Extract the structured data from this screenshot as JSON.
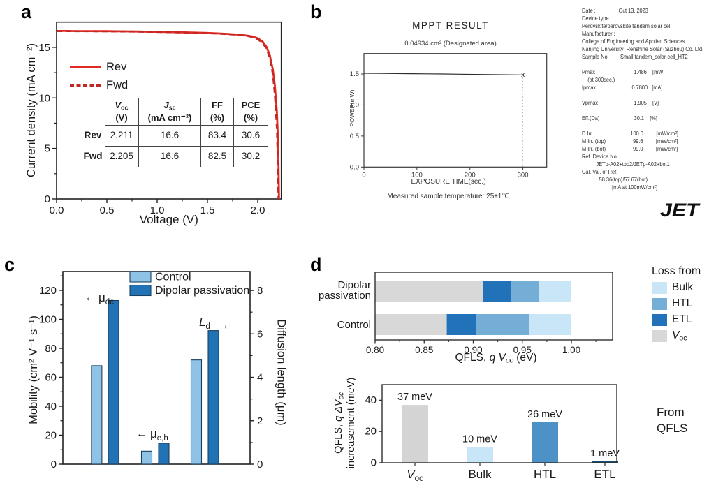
{
  "panel_a": {
    "label": "a",
    "table": {
      "row_header": [
        "Rev",
        "Fwd"
      ],
      "columns": [
        {
          "main": "V",
          "sub": "oc",
          "unit": "(V)"
        },
        {
          "main": "J",
          "sub": "sc",
          "unit": "(mA cm⁻²)"
        },
        {
          "main": "FF",
          "sub": "",
          "unit": "(%)"
        },
        {
          "main": "PCE",
          "sub": "",
          "unit": "(%)"
        }
      ],
      "rows": [
        [
          "2.211",
          "16.6",
          "83.4",
          "30.6"
        ],
        [
          "2.205",
          "16.6",
          "82.5",
          "30.2"
        ]
      ]
    }
  },
  "panel_b": {
    "label": "b",
    "logo": "JET",
    "info_lines": [
      "Date :                Oct 13, 2023",
      "Device type :",
      "Perovskite/perovskite tandem solar cell",
      "Manufacturer :",
      "College of Engineering and Applied Sciences",
      "Nanjing University; Renshine Solar (Suzhou) Co. Ltd.",
      "Sample No. :      Small tandem_solar cell_HT2",
      "",
      "Pmax                           1.486    [mW]",
      "    (at 300sec.)",
      "Ipmax                         0.7800   [mA]",
      "",
      "Vpmax                         1.905    [V]",
      "",
      "Eff.(Da)                        30.1    [%]",
      "",
      "D Irr.                          100.0         [mW/cm²]",
      "M Irr. (top)                   99.6         [mW/cm²]",
      "M Irr. (bot)                   99.0         [mW/cm²]",
      "Ref. Device No.",
      "          JETp-A02+top2/JETp-A02+bot1",
      "Cal. Val. of Ref.",
      "            58.36(top)/57.67(bot)",
      "                     [mA at 100mW/cm²]"
    ]
  },
  "panel_c": {
    "label": "c"
  },
  "panel_d": {
    "label": "d",
    "from_line1": "From",
    "from_line2": "QFLS"
  },
  "chart_data": [
    {
      "id": "jv",
      "type": "line",
      "xlabel": "Voltage (V)",
      "ylabel": "Current density (mA cm⁻²)",
      "xlim": [
        0,
        2.234
      ],
      "ylim": [
        0,
        17.5
      ],
      "xticks": [
        0,
        0.5,
        1.0,
        1.5,
        2.0
      ],
      "xtick_labels": [
        "0.0",
        "0.5",
        "1.0",
        "1.5",
        "2.0"
      ],
      "yticks": [
        0,
        5,
        10,
        15
      ],
      "ytick_labels": [
        "0",
        "5",
        "10",
        "15"
      ],
      "series": [
        {
          "name": "Rev",
          "style": "solid",
          "color": "#e02a22",
          "x": [
            0,
            0.1,
            0.2,
            0.3,
            0.4,
            0.5,
            0.6,
            0.7,
            0.8,
            0.9,
            1.0,
            1.1,
            1.2,
            1.3,
            1.4,
            1.5,
            1.6,
            1.7,
            1.8,
            1.9,
            1.95,
            2.0,
            2.05,
            2.09,
            2.12,
            2.15,
            2.17,
            2.19,
            2.2,
            2.206,
            2.211
          ],
          "y": [
            16.62,
            16.62,
            16.61,
            16.61,
            16.6,
            16.6,
            16.59,
            16.58,
            16.57,
            16.55,
            16.54,
            16.52,
            16.5,
            16.48,
            16.45,
            16.42,
            16.38,
            16.33,
            16.27,
            16.16,
            16.07,
            15.9,
            15.55,
            15.0,
            14.2,
            12.8,
            11.2,
            8.6,
            6.2,
            3.4,
            0
          ]
        },
        {
          "name": "Fwd",
          "style": "dashed",
          "color": "#c22823",
          "x": [
            0,
            0.2,
            0.4,
            0.6,
            0.8,
            1.0,
            1.2,
            1.4,
            1.6,
            1.8,
            1.9,
            1.95,
            2.0,
            2.05,
            2.09,
            2.12,
            2.15,
            2.17,
            2.19,
            2.198,
            2.205
          ],
          "y": [
            16.6,
            16.59,
            16.58,
            16.57,
            16.55,
            16.52,
            16.48,
            16.43,
            16.36,
            16.24,
            16.12,
            16.0,
            15.8,
            15.4,
            14.8,
            13.9,
            12.3,
            10.2,
            6.8,
            3.6,
            0
          ]
        }
      ]
    },
    {
      "id": "mppt",
      "type": "line",
      "title": "MPPT RESULT",
      "subtitle": "0.04934 cm² (Designated area)",
      "xlabel": "EXPOSURE TIME(sec.)",
      "ylabel": "POWER(mW)",
      "note": "Measured sample temperature: 25±1℃",
      "xlim": [
        0,
        345
      ],
      "ylim": [
        0,
        1.83
      ],
      "xticks": [
        0,
        100,
        200,
        300
      ],
      "xtick_labels": [
        "0",
        "100",
        "200",
        "300"
      ],
      "yticks": [
        0,
        0.5,
        1.0,
        1.5
      ],
      "ytick_labels": [
        "0.0",
        "0.5",
        "1.0",
        "1.5"
      ],
      "end_marker": "X",
      "series": [
        {
          "name": "power",
          "color": "#2e2e2e",
          "x": [
            0,
            30,
            60,
            90,
            120,
            150,
            180,
            210,
            240,
            270,
            300
          ],
          "y": [
            1.512,
            1.509,
            1.507,
            1.505,
            1.503,
            1.5,
            1.497,
            1.494,
            1.491,
            1.488,
            1.486
          ]
        }
      ]
    },
    {
      "id": "mobility",
      "type": "grouped-bar-dual-axis",
      "ylabel_left": "Mobility (cm² V⁻¹ s⁻¹)",
      "ylabel_right": "Diffusion length (μm)",
      "ylim_left": [
        0,
        133
      ],
      "ylim_right": [
        0,
        8.87
      ],
      "yticks_left": [
        0,
        20,
        40,
        60,
        80,
        100,
        120
      ],
      "yticks_right": [
        0,
        2,
        4,
        6,
        8
      ],
      "series_names": [
        "Control",
        "Dipolar passivation"
      ],
      "colors": {
        "control": "#8fc3e6",
        "dipolar": "#2273b5",
        "edge": "#1c3f5e"
      },
      "groups": [
        {
          "key": "mu_dc",
          "axis": "left",
          "ann_main": "μ",
          "ann_sub": "dc",
          "ann_italic": false,
          "arrow": "left",
          "control": 68,
          "dipolar": 113
        },
        {
          "key": "mu_eh",
          "axis": "left",
          "ann_main": "μ",
          "ann_sub": "e,h",
          "ann_italic": false,
          "arrow": "left",
          "control": 9,
          "dipolar": 14.5
        },
        {
          "key": "L_d",
          "axis": "right",
          "ann_main": "L",
          "ann_sub": "d",
          "ann_italic": true,
          "arrow": "right",
          "control": 4.8,
          "dipolar": 6.15
        }
      ]
    },
    {
      "id": "qfls_stacked",
      "type": "stacked-hbar",
      "xlabel_parts": {
        "pre": "QFLS, ",
        "it": "q V",
        "sub": "oc",
        "post": " (eV)"
      },
      "xlim": [
        0.8,
        1.042
      ],
      "xticks": [
        0.8,
        0.85,
        0.9,
        0.95,
        1.0
      ],
      "xtick_labels": [
        "0.80",
        "0.85",
        "0.90",
        "0.95",
        "1.00"
      ],
      "minor_tick_step": 0.025,
      "segments_order": [
        "ETL",
        "HTL",
        "Bulk"
      ],
      "rows": [
        {
          "label_lines": [
            "Dipolar",
            "passivation"
          ],
          "voc": 0.91,
          "ETL": [
            0.91,
            0.939
          ],
          "HTL": [
            0.939,
            0.967
          ],
          "Bulk": [
            0.967,
            1.0
          ]
        },
        {
          "label_lines": [
            "Control"
          ],
          "voc": 0.873,
          "ETL": [
            0.873,
            0.903
          ],
          "HTL": [
            0.903,
            0.957
          ],
          "Bulk": [
            0.957,
            1.0
          ]
        }
      ],
      "legend_title": "Loss from",
      "legend": [
        {
          "label_main": "Bulk",
          "label_sub": "",
          "color": "#c9e6f8"
        },
        {
          "label_main": "HTL",
          "label_sub": "",
          "color": "#74aed6"
        },
        {
          "label_main": "ETL",
          "label_sub": "",
          "color": "#2172b8"
        },
        {
          "label_main": "V",
          "label_sub": "oc",
          "color": "#d8d8d8"
        }
      ],
      "colors": {
        "Voc": "#d8d8d8",
        "ETL": "#2172b8",
        "HTL": "#74aed6",
        "Bulk": "#c9e6f8"
      }
    },
    {
      "id": "qfls_increase",
      "type": "bar",
      "ylabel_parts": {
        "l1_pre": "QFLS, ",
        "l1_it": "q ΔV",
        "l1_sub": "oc",
        "l2": "increasement (meV)"
      },
      "categories": [
        {
          "main": "V",
          "sub": "oc",
          "italic": true
        },
        {
          "main": "Bulk",
          "sub": "",
          "italic": false
        },
        {
          "main": "HTL",
          "sub": "",
          "italic": false
        },
        {
          "main": "ETL",
          "sub": "",
          "italic": false
        }
      ],
      "values": [
        37,
        10,
        26,
        1
      ],
      "bar_labels": [
        "37 meV",
        "10 meV",
        "26 meV",
        "1 meV"
      ],
      "colors": [
        "#d4d4d4",
        "#c9e6f8",
        "#4d92c6",
        "#1b4d74"
      ],
      "ylim": [
        0,
        50
      ],
      "yticks": [
        0,
        20,
        40
      ],
      "ytick_labels": [
        "0",
        "20",
        "40"
      ],
      "annotation": "From QFLS"
    }
  ]
}
